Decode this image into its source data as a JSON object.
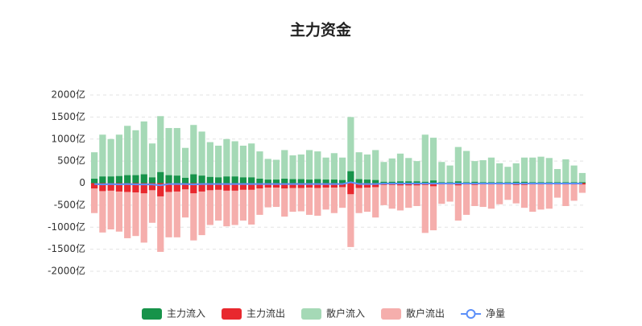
{
  "chart_data": {
    "type": "bar",
    "title": "主力资金",
    "ylim": [
      -2000,
      2000
    ],
    "yticks": [
      {
        "value": 2000,
        "label": "2000亿"
      },
      {
        "value": 1500,
        "label": "1500亿"
      },
      {
        "value": 1000,
        "label": "1000亿"
      },
      {
        "value": 500,
        "label": "500亿"
      },
      0,
      {
        "value": -500,
        "label": "-500亿"
      },
      {
        "value": -1000,
        "label": "-1000亿"
      },
      {
        "value": -1500,
        "label": "-1500亿"
      },
      {
        "value": -2000,
        "label": "-2000亿"
      }
    ],
    "grid": true,
    "legend": "bottom",
    "series": [
      {
        "name": "散户流入",
        "type": "bar",
        "color": "#a5d9b6",
        "values": [
          700,
          1100,
          1000,
          1100,
          1300,
          1200,
          1400,
          900,
          1520,
          1250,
          1250,
          800,
          1320,
          1170,
          930,
          850,
          1000,
          950,
          850,
          900,
          720,
          550,
          530,
          750,
          630,
          650,
          750,
          720,
          580,
          680,
          580,
          1500,
          700,
          650,
          750,
          480,
          560,
          670,
          570,
          500,
          1100,
          1030,
          480,
          400,
          820,
          730,
          500,
          520,
          580,
          450,
          370,
          450,
          580,
          580,
          600,
          570,
          320,
          540,
          400,
          230
        ]
      },
      {
        "name": "散户流出",
        "type": "bar",
        "color": "#f5aeac",
        "values": [
          -680,
          -1120,
          -1050,
          -1100,
          -1250,
          -1200,
          -1350,
          -900,
          -1560,
          -1230,
          -1230,
          -780,
          -1300,
          -1180,
          -950,
          -850,
          -980,
          -950,
          -850,
          -940,
          -720,
          -550,
          -540,
          -760,
          -650,
          -640,
          -720,
          -740,
          -600,
          -680,
          -560,
          -1450,
          -680,
          -650,
          -780,
          -500,
          -580,
          -620,
          -560,
          -520,
          -1130,
          -1070,
          -470,
          -420,
          -850,
          -720,
          -520,
          -540,
          -580,
          -480,
          -380,
          -460,
          -560,
          -650,
          -600,
          -580,
          -330,
          -520,
          -400,
          -220
        ]
      },
      {
        "name": "主力流入",
        "type": "bar",
        "color": "#17934a",
        "values": [
          100,
          150,
          150,
          160,
          180,
          180,
          200,
          130,
          250,
          180,
          170,
          120,
          200,
          170,
          140,
          130,
          150,
          150,
          130,
          130,
          100,
          80,
          80,
          100,
          90,
          90,
          80,
          90,
          80,
          80,
          70,
          270,
          90,
          80,
          70,
          30,
          30,
          40,
          40,
          40,
          30,
          60,
          20,
          20,
          40,
          20,
          30,
          20,
          20,
          20,
          20,
          30,
          30,
          20,
          20,
          20,
          20,
          20,
          20,
          20
        ]
      },
      {
        "name": "主力流出",
        "type": "bar",
        "color": "#e8282e",
        "values": [
          -120,
          -180,
          -170,
          -190,
          -200,
          -210,
          -230,
          -160,
          -300,
          -200,
          -190,
          -140,
          -230,
          -190,
          -160,
          -150,
          -170,
          -170,
          -150,
          -150,
          -120,
          -100,
          -100,
          -120,
          -110,
          -110,
          -100,
          -110,
          -100,
          -100,
          -90,
          -250,
          -110,
          -100,
          -90,
          -40,
          -40,
          -50,
          -50,
          -50,
          -40,
          -70,
          -30,
          -30,
          -50,
          -30,
          -40,
          -30,
          -30,
          -30,
          -30,
          -40,
          -40,
          -30,
          -30,
          -30,
          -30,
          -30,
          -30,
          -30
        ]
      },
      {
        "name": "净量",
        "type": "line",
        "color": "#5b8ff9",
        "values": [
          -20,
          -30,
          -20,
          -30,
          -20,
          -30,
          -30,
          -30,
          -50,
          -20,
          -20,
          -20,
          -30,
          -20,
          -20,
          -20,
          -20,
          -20,
          -20,
          -20,
          -20,
          -20,
          -20,
          -20,
          -20,
          -20,
          -20,
          -20,
          -20,
          -20,
          -20,
          20,
          -20,
          -20,
          -20,
          -10,
          -10,
          -10,
          -10,
          -10,
          -10,
          -10,
          -10,
          -10,
          -10,
          -10,
          -10,
          -10,
          -10,
          -10,
          -10,
          -10,
          -10,
          -10,
          -10,
          -10,
          -10,
          -10,
          -10,
          -10
        ]
      }
    ],
    "legend_order": [
      2,
      3,
      0,
      1,
      4
    ]
  }
}
